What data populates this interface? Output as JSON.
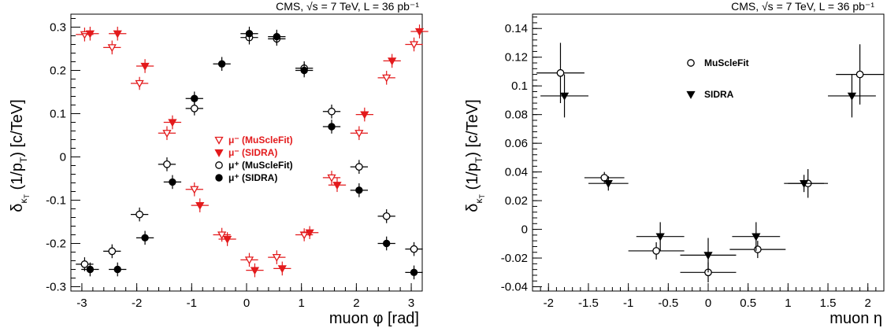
{
  "chart_data": [
    {
      "type": "scatter",
      "header": "CMS,  √s = 7 TeV,  L = 36 pb⁻¹",
      "xlabel": "muon φ [rad]",
      "ylabel": "δκT (1/pT) [c/TeV]",
      "xlim": [
        -3.2,
        3.2
      ],
      "ylim": [
        -0.31,
        0.33
      ],
      "xticks": [
        -3,
        -2,
        -1,
        0,
        1,
        2,
        3
      ],
      "xtick_labels": [
        "-3",
        "-2",
        "-1",
        "0",
        "1",
        "2",
        "3"
      ],
      "yticks": [
        -0.3,
        -0.2,
        -0.1,
        0,
        0.1,
        0.2,
        0.3
      ],
      "ytick_labels": [
        "-0.3",
        "-0.2",
        "-0.1",
        "0",
        "0.1",
        "0.2",
        "0.3"
      ],
      "legend_position": "center",
      "series": [
        {
          "name": "μ⁻ (MuScleFit)",
          "color": "#e31a1c",
          "marker": "triangle-down-open",
          "xerr": 0.16,
          "points": [
            {
              "x": -2.95,
              "y": 0.283,
              "yerr": 0.016
            },
            {
              "x": -2.45,
              "y": 0.253,
              "yerr": 0.016
            },
            {
              "x": -1.95,
              "y": 0.17,
              "yerr": 0.015
            },
            {
              "x": -1.45,
              "y": 0.055,
              "yerr": 0.016
            },
            {
              "x": -0.95,
              "y": -0.075,
              "yerr": 0.016
            },
            {
              "x": -0.45,
              "y": -0.18,
              "yerr": 0.016
            },
            {
              "x": 0.05,
              "y": -0.238,
              "yerr": 0.016
            },
            {
              "x": 0.55,
              "y": -0.232,
              "yerr": 0.016
            },
            {
              "x": 1.05,
              "y": -0.18,
              "yerr": 0.015
            },
            {
              "x": 1.55,
              "y": -0.048,
              "yerr": 0.016
            },
            {
              "x": 2.05,
              "y": 0.055,
              "yerr": 0.016
            },
            {
              "x": 2.55,
              "y": 0.183,
              "yerr": 0.016
            },
            {
              "x": 3.05,
              "y": 0.26,
              "yerr": 0.016
            }
          ]
        },
        {
          "name": "μ⁻ (SIDRA)",
          "color": "#e31a1c",
          "marker": "triangle-down-filled",
          "xerr": 0.16,
          "points": [
            {
              "x": -2.85,
              "y": 0.285,
              "yerr": 0.016
            },
            {
              "x": -2.35,
              "y": 0.285,
              "yerr": 0.016
            },
            {
              "x": -1.85,
              "y": 0.21,
              "yerr": 0.016
            },
            {
              "x": -1.35,
              "y": 0.08,
              "yerr": 0.016
            },
            {
              "x": -0.85,
              "y": -0.112,
              "yerr": 0.016
            },
            {
              "x": -0.35,
              "y": -0.19,
              "yerr": 0.016
            },
            {
              "x": 0.15,
              "y": -0.262,
              "yerr": 0.016
            },
            {
              "x": 0.65,
              "y": -0.258,
              "yerr": 0.016
            },
            {
              "x": 1.15,
              "y": -0.175,
              "yerr": 0.015
            },
            {
              "x": 1.65,
              "y": -0.065,
              "yerr": 0.016
            },
            {
              "x": 2.15,
              "y": 0.098,
              "yerr": 0.016
            },
            {
              "x": 2.65,
              "y": 0.222,
              "yerr": 0.016
            },
            {
              "x": 3.15,
              "y": 0.29,
              "yerr": 0.016
            }
          ]
        },
        {
          "name": "μ⁺ (MuScleFit)",
          "color": "#000000",
          "marker": "circle-open",
          "xerr": 0.16,
          "points": [
            {
              "x": -2.95,
              "y": -0.248,
              "yerr": 0.016
            },
            {
              "x": -2.45,
              "y": -0.218,
              "yerr": 0.016
            },
            {
              "x": -1.95,
              "y": -0.133,
              "yerr": 0.016
            },
            {
              "x": -1.45,
              "y": -0.017,
              "yerr": 0.016
            },
            {
              "x": -0.95,
              "y": 0.112,
              "yerr": 0.016
            },
            {
              "x": 0.05,
              "y": 0.276,
              "yerr": 0.016
            },
            {
              "x": 0.55,
              "y": 0.273,
              "yerr": 0.016
            },
            {
              "x": 1.05,
              "y": 0.205,
              "yerr": 0.016
            },
            {
              "x": 1.55,
              "y": 0.105,
              "yerr": 0.016
            },
            {
              "x": 2.05,
              "y": -0.023,
              "yerr": 0.016
            },
            {
              "x": 2.55,
              "y": -0.137,
              "yerr": 0.016
            },
            {
              "x": 3.05,
              "y": -0.213,
              "yerr": 0.016
            }
          ]
        },
        {
          "name": "μ⁺ (SIDRA)",
          "color": "#000000",
          "marker": "circle-filled",
          "xerr": 0.16,
          "points": [
            {
              "x": -2.85,
              "y": -0.26,
              "yerr": 0.016
            },
            {
              "x": -2.35,
              "y": -0.26,
              "yerr": 0.016
            },
            {
              "x": -1.85,
              "y": -0.187,
              "yerr": 0.016
            },
            {
              "x": -1.35,
              "y": -0.058,
              "yerr": 0.016
            },
            {
              "x": -0.95,
              "y": 0.135,
              "yerr": 0.016
            },
            {
              "x": -0.45,
              "y": 0.215,
              "yerr": 0.016
            },
            {
              "x": 0.05,
              "y": 0.285,
              "yerr": 0.016
            },
            {
              "x": 0.55,
              "y": 0.278,
              "yerr": 0.016
            },
            {
              "x": 1.05,
              "y": 0.2,
              "yerr": 0.016
            },
            {
              "x": 1.55,
              "y": 0.07,
              "yerr": 0.016
            },
            {
              "x": 2.05,
              "y": -0.077,
              "yerr": 0.016
            },
            {
              "x": 2.55,
              "y": -0.2,
              "yerr": 0.016
            },
            {
              "x": 3.05,
              "y": -0.267,
              "yerr": 0.016
            }
          ]
        }
      ]
    },
    {
      "type": "scatter",
      "header": "CMS,  √s = 7 TeV,  L = 36 pb⁻¹",
      "xlabel": "muon η",
      "ylabel": "δκT (1/pT) [c/TeV]",
      "xlim": [
        -2.2,
        2.2
      ],
      "ylim": [
        -0.043,
        0.15
      ],
      "xticks": [
        -2,
        -1.5,
        -1,
        -0.5,
        0,
        0.5,
        1,
        1.5,
        2
      ],
      "xtick_labels": [
        "-2",
        "-1.5",
        "-1",
        "-0.5",
        "0",
        "0.5",
        "1",
        "1.5",
        "2"
      ],
      "yticks": [
        -0.04,
        -0.02,
        0,
        0.02,
        0.04,
        0.06,
        0.08,
        0.1,
        0.12,
        0.14
      ],
      "ytick_labels": [
        "-0.04",
        "-0.02",
        "0",
        "0.02",
        "0.04",
        "0.06",
        "0.08",
        "0.1",
        "0.12",
        "0.14"
      ],
      "legend_position": "top-center",
      "series": [
        {
          "name": "MuScleFit",
          "color": "#000000",
          "marker": "circle-open",
          "points": [
            {
              "x": -1.85,
              "y": 0.109,
              "xerr": 0.3,
              "yerr": 0.021
            },
            {
              "x": -1.3,
              "y": 0.036,
              "xerr": 0.25,
              "yerr": 0.004
            },
            {
              "x": -0.65,
              "y": -0.015,
              "xerr": 0.35,
              "yerr": 0.006
            },
            {
              "x": 0.0,
              "y": -0.03,
              "xerr": 0.35,
              "yerr": 0.007
            },
            {
              "x": 0.62,
              "y": -0.014,
              "xerr": 0.35,
              "yerr": 0.006
            },
            {
              "x": 1.25,
              "y": 0.032,
              "xerr": 0.25,
              "yerr": 0.01
            },
            {
              "x": 1.9,
              "y": 0.108,
              "xerr": 0.3,
              "yerr": 0.021
            }
          ]
        },
        {
          "name": "SIDRA",
          "color": "#000000",
          "marker": "triangle-down-filled",
          "points": [
            {
              "x": -1.8,
              "y": 0.093,
              "xerr": 0.3,
              "yerr": 0.015
            },
            {
              "x": -1.25,
              "y": 0.032,
              "xerr": 0.25,
              "yerr": 0.005
            },
            {
              "x": -0.6,
              "y": -0.005,
              "xerr": 0.3,
              "yerr": 0.01
            },
            {
              "x": 0.0,
              "y": -0.018,
              "xerr": 0.35,
              "yerr": 0.012
            },
            {
              "x": 0.6,
              "y": -0.005,
              "xerr": 0.3,
              "yerr": 0.01
            },
            {
              "x": 1.2,
              "y": 0.032,
              "xerr": 0.25,
              "yerr": 0.006
            },
            {
              "x": 1.8,
              "y": 0.093,
              "xerr": 0.3,
              "yerr": 0.015
            }
          ]
        }
      ]
    }
  ]
}
